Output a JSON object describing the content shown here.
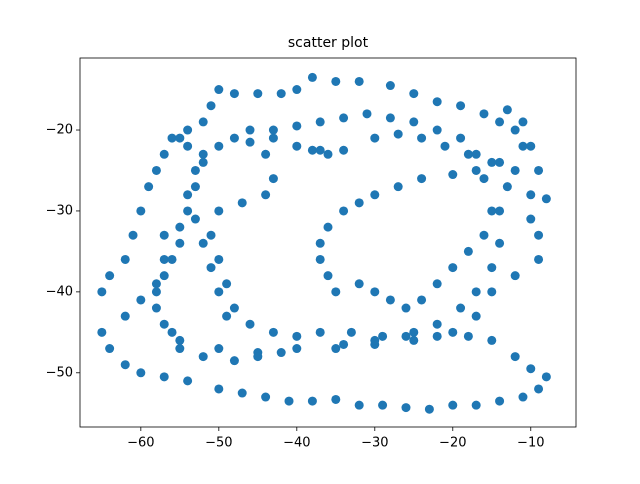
{
  "chart_data": {
    "type": "scatter",
    "title": "scatter plot",
    "color": "#1f77b4",
    "xlim": [
      -67.8,
      -4.2
    ],
    "ylim": [
      -56.7,
      -11.1
    ],
    "xticks": [
      {
        "value": -60,
        "label": "−60"
      },
      {
        "value": -50,
        "label": "−50"
      },
      {
        "value": -40,
        "label": "−40"
      },
      {
        "value": -30,
        "label": "−30"
      },
      {
        "value": -20,
        "label": "−20"
      },
      {
        "value": -10,
        "label": "−10"
      }
    ],
    "yticks": [
      {
        "value": -50,
        "label": "−50"
      },
      {
        "value": -40,
        "label": "−40"
      },
      {
        "value": -30,
        "label": "−30"
      },
      {
        "value": -20,
        "label": "−20"
      }
    ],
    "x": [
      -65,
      -64,
      -62,
      -61,
      -60,
      -59,
      -58,
      -57,
      -56,
      -54,
      -52,
      -51,
      -50,
      -48,
      -45,
      -42,
      -40,
      -38,
      -35,
      -32,
      -28,
      -25,
      -22,
      -19,
      -16,
      -13,
      -11,
      -11,
      -12,
      -10,
      -10,
      -9,
      -9,
      -12,
      -15,
      -17,
      -20,
      -25,
      -30,
      -35,
      -40,
      -45,
      -50,
      -55,
      -57,
      -58,
      -58,
      -57,
      -55,
      -65,
      -64,
      -62,
      -60,
      -57,
      -54,
      -50,
      -47,
      -44,
      -41,
      -38,
      -35,
      -32,
      -29,
      -26,
      -23,
      -20,
      -17,
      -14,
      -11,
      -9,
      -8,
      -10,
      -12,
      -15,
      -18,
      -22,
      -26,
      -30,
      -34,
      -36,
      -38,
      -40,
      -43,
      -46,
      -48,
      -50,
      -52,
      -53,
      -54,
      -53,
      -52,
      -51,
      -50,
      -49,
      -46,
      -43,
      -40,
      -37,
      -33,
      -29,
      -25,
      -22,
      -19,
      -17,
      -15,
      -14,
      -15,
      -16,
      -17,
      -19,
      -22,
      -25,
      -28,
      -31,
      -34,
      -37,
      -40,
      -43,
      -35,
      -36,
      -37,
      -37,
      -36,
      -34,
      -32,
      -30,
      -27,
      -24,
      -20,
      -17,
      -14,
      -13,
      -14,
      -16,
      -18,
      -20,
      -22,
      -24,
      -26,
      -28,
      -30,
      -32,
      -62,
      -60,
      -58,
      -57,
      -56,
      -57,
      -55,
      -54,
      -53,
      -52,
      -54,
      -55,
      -56,
      -55,
      -52,
      -48,
      -45,
      -42,
      -46,
      -44,
      -43,
      -44,
      -47,
      -50,
      -51,
      -50,
      -49,
      -48,
      -37,
      -34,
      -30,
      -27,
      -24,
      -21,
      -18,
      -15,
      -8,
      -9,
      -10,
      -12,
      -14
    ],
    "values": [
      -40,
      -38,
      -36,
      -33,
      -30,
      -27,
      -25,
      -23,
      -21,
      -20,
      -19,
      -17,
      -15,
      -15.5,
      -15.5,
      -15.5,
      -15,
      -13.5,
      -14,
      -14,
      -14.5,
      -15.5,
      -16.5,
      -17,
      -18,
      -17.5,
      -19,
      -22,
      -25,
      -28,
      -31,
      -33,
      -36,
      -38,
      -40,
      -43,
      -45,
      -46,
      -46.5,
      -47,
      -47,
      -47.5,
      -47,
      -46,
      -44,
      -42,
      -39,
      -36,
      -34,
      -45,
      -47,
      -49,
      -50,
      -50.5,
      -51,
      -52,
      -52.5,
      -53,
      -53.5,
      -53.5,
      -53.3,
      -54,
      -54,
      -54.3,
      -54.5,
      -54,
      -54,
      -53.5,
      -53,
      -52,
      -50.5,
      -49.5,
      -48,
      -46,
      -45.5,
      -45.5,
      -45.5,
      -46,
      -46.5,
      -23,
      -22.5,
      -22,
      -21,
      -20,
      -21,
      -22,
      -23,
      -25,
      -28,
      -31,
      -34,
      -37,
      -40,
      -43,
      -44,
      -45,
      -45.5,
      -45,
      -45,
      -45.5,
      -45,
      -44,
      -42,
      -40,
      -37,
      -34,
      -30,
      -26,
      -23,
      -21,
      -20,
      -19,
      -18.5,
      -18,
      -18.5,
      -19,
      -19.5,
      -20,
      -40,
      -38,
      -36,
      -34,
      -32,
      -30,
      -29,
      -28,
      -27,
      -26,
      -25.5,
      -25,
      -24,
      -27,
      -30,
      -33,
      -35,
      -37,
      -39,
      -41,
      -42,
      -41,
      -40,
      -39,
      -43,
      -41,
      -40,
      -38,
      -36,
      -33,
      -32,
      -30,
      -27,
      -24,
      -22,
      -21,
      -45,
      -47,
      -48,
      -48.5,
      -48,
      -47.5,
      -21.5,
      -23,
      -26,
      -28,
      -29,
      -30,
      -33,
      -36,
      -39,
      -42,
      -22.5,
      -22.5,
      -21,
      -20.5,
      -21,
      -22,
      -23,
      -24,
      -28.5,
      -25,
      -22,
      -20,
      -19
    ]
  }
}
